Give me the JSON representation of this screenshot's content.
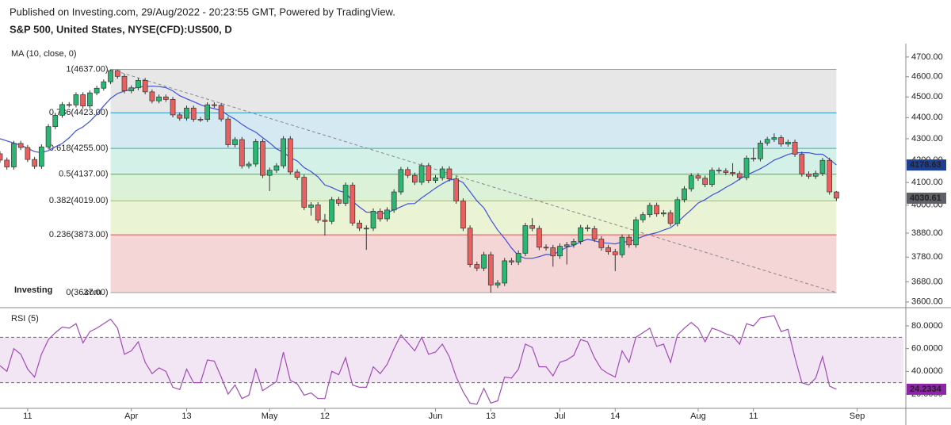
{
  "header": {
    "published": "Published on Investing.com, 29/Aug/2022 - 20:23:55 GMT, Powered by TradingView.",
    "instrument": "S&P 500, United States, NYSE(CFD):US500, D",
    "logo": "Investing",
    "logo_suffix": ".com"
  },
  "chart_data": [
    {
      "type": "candlestick",
      "indicator_label": "MA (10, close, 0)",
      "log": true,
      "ylim": [
        3584,
        4769
      ],
      "xlim": [
        0,
        130.7
      ],
      "up_color": "#2bb673",
      "down_color": "#e8605f",
      "ma_color": "#3f51d8",
      "yticks": [
        {
          "value": 4700,
          "label": "4700.00"
        },
        {
          "value": 4600,
          "label": "4600.00"
        },
        {
          "value": 4500,
          "label": "4500.00"
        },
        {
          "value": 4400,
          "label": "4400.00"
        },
        {
          "value": 4300,
          "label": "4300.00"
        },
        {
          "value": 4200,
          "label": "4200.00"
        },
        {
          "value": 4100,
          "label": "4100.00"
        },
        {
          "value": 4000,
          "label": "4000.00"
        },
        {
          "value": 3880,
          "label": "3880.00"
        },
        {
          "value": 3780,
          "label": "3780.00"
        },
        {
          "value": 3680,
          "label": "3680.00"
        },
        {
          "value": 3600,
          "label": "3600.00"
        }
      ],
      "xticks": [
        {
          "value": 4,
          "label": "11"
        },
        {
          "value": 19,
          "label": "Apr"
        },
        {
          "value": 27,
          "label": "13"
        },
        {
          "value": 39,
          "label": "May"
        },
        {
          "value": 47,
          "label": "12"
        },
        {
          "value": 63,
          "label": "Jun"
        },
        {
          "value": 71,
          "label": "13"
        },
        {
          "value": 81,
          "label": "Jul"
        },
        {
          "value": 89,
          "label": "14"
        },
        {
          "value": 101,
          "label": "Aug"
        },
        {
          "value": 109,
          "label": "11"
        },
        {
          "value": 124,
          "label": "Sep"
        }
      ],
      "fib": [
        {
          "value": 4637,
          "label": "1(4637.00)",
          "color": "#9e9e9e",
          "fill": "#e7e7e7"
        },
        {
          "value": 4423,
          "label": "0.786(4423.00)",
          "color": "#2196c8",
          "fill": "#d5e9f3"
        },
        {
          "value": 4255,
          "label": "0.618(4255.00)",
          "color": "#3cb4a0",
          "fill": "#d3f1e7"
        },
        {
          "value": 4137,
          "label": "0.5(4137.00)",
          "color": "#4caf50",
          "fill": "#dbf2d8"
        },
        {
          "value": 4019,
          "label": "0.382(4019.00)",
          "color": "#a8c04a",
          "fill": "#ebf3d5"
        },
        {
          "value": 3873,
          "label": "0.236(3873.00)",
          "color": "#e05050",
          "fill": "#f5d6d6"
        },
        {
          "value": 3637,
          "label": "0(3637.00)",
          "color": "#9e9e9e"
        }
      ],
      "candles": [
        {
          "o": 4230,
          "h": 4242,
          "l": 4189,
          "c": 4201
        },
        {
          "o": 4201,
          "h": 4213,
          "l": 4158,
          "c": 4170
        },
        {
          "o": 4170,
          "h": 4290,
          "l": 4158,
          "c": 4278
        },
        {
          "o": 4278,
          "h": 4290,
          "l": 4247,
          "c": 4259
        },
        {
          "o": 4259,
          "h": 4271,
          "l": 4192,
          "c": 4204
        },
        {
          "o": 4204,
          "h": 4216,
          "l": 4161,
          "c": 4173
        },
        {
          "o": 4173,
          "h": 4274,
          "l": 4161,
          "c": 4262
        },
        {
          "o": 4262,
          "h": 4369,
          "l": 4250,
          "c": 4357
        },
        {
          "o": 4357,
          "h": 4423,
          "l": 4345,
          "c": 4411
        },
        {
          "o": 4411,
          "h": 4475,
          "l": 4399,
          "c": 4463
        },
        {
          "o": 4463,
          "h": 4475,
          "l": 4449,
          "c": 4461
        },
        {
          "o": 4461,
          "h": 4523,
          "l": 4449,
          "c": 4511
        },
        {
          "o": 4511,
          "h": 4523,
          "l": 4444,
          "c": 4456
        },
        {
          "o": 4456,
          "h": 4532,
          "l": 4444,
          "c": 4520
        },
        {
          "o": 4520,
          "h": 4555,
          "l": 4508,
          "c": 4543
        },
        {
          "o": 4543,
          "h": 4587,
          "l": 4531,
          "c": 4575
        },
        {
          "o": 4575,
          "h": 4637,
          "l": 4563,
          "c": 4631
        },
        {
          "o": 4631,
          "h": 4636,
          "l": 4590,
          "c": 4602
        },
        {
          "o": 4602,
          "h": 4614,
          "l": 4518,
          "c": 4530
        },
        {
          "o": 4530,
          "h": 4557,
          "l": 4518,
          "c": 4545
        },
        {
          "o": 4545,
          "h": 4594,
          "l": 4533,
          "c": 4582
        },
        {
          "o": 4582,
          "h": 4594,
          "l": 4513,
          "c": 4525
        },
        {
          "o": 4525,
          "h": 4537,
          "l": 4469,
          "c": 4481
        },
        {
          "o": 4481,
          "h": 4512,
          "l": 4469,
          "c": 4500
        },
        {
          "o": 4500,
          "h": 4512,
          "l": 4476,
          "c": 4488
        },
        {
          "o": 4488,
          "h": 4500,
          "l": 4401,
          "c": 4413
        },
        {
          "o": 4413,
          "h": 4425,
          "l": 4385,
          "c": 4397
        },
        {
          "o": 4397,
          "h": 4458,
          "l": 4385,
          "c": 4446
        },
        {
          "o": 4446,
          "h": 4458,
          "l": 4380,
          "c": 4392
        },
        {
          "o": 4392,
          "h": 4403,
          "l": 4379,
          "c": 4391
        },
        {
          "o": 4391,
          "h": 4474,
          "l": 4379,
          "c": 4462
        },
        {
          "o": 4462,
          "h": 4474,
          "l": 4447,
          "c": 4459
        },
        {
          "o": 4459,
          "h": 4471,
          "l": 4381,
          "c": 4393
        },
        {
          "o": 4393,
          "h": 4405,
          "l": 4260,
          "c": 4272
        },
        {
          "o": 4272,
          "h": 4308,
          "l": 4260,
          "c": 4296
        },
        {
          "o": 4296,
          "h": 4308,
          "l": 4163,
          "c": 4175
        },
        {
          "o": 4175,
          "h": 4195,
          "l": 4163,
          "c": 4183
        },
        {
          "o": 4183,
          "h": 4299,
          "l": 4171,
          "c": 4287
        },
        {
          "o": 4287,
          "h": 4299,
          "l": 4120,
          "c": 4132
        },
        {
          "o": 4132,
          "h": 4167,
          "l": 4062,
          "c": 4155
        },
        {
          "o": 4155,
          "h": 4187,
          "l": 4143,
          "c": 4175
        },
        {
          "o": 4175,
          "h": 4312,
          "l": 4163,
          "c": 4300
        },
        {
          "o": 4300,
          "h": 4312,
          "l": 4135,
          "c": 4147
        },
        {
          "o": 4147,
          "h": 4159,
          "l": 4111,
          "c": 4123
        },
        {
          "o": 4123,
          "h": 4135,
          "l": 3979,
          "c": 3991
        },
        {
          "o": 3991,
          "h": 4013,
          "l": 3955,
          "c": 4001
        },
        {
          "o": 4001,
          "h": 4013,
          "l": 3923,
          "c": 3935
        },
        {
          "o": 3935,
          "h": 3962,
          "l": 3870,
          "c": 3930
        },
        {
          "o": 3930,
          "h": 4036,
          "l": 3918,
          "c": 4024
        },
        {
          "o": 4024,
          "h": 4036,
          "l": 3996,
          "c": 4008
        },
        {
          "o": 4008,
          "h": 4100,
          "l": 3996,
          "c": 4088
        },
        {
          "o": 4088,
          "h": 4100,
          "l": 3911,
          "c": 3923
        },
        {
          "o": 3923,
          "h": 3935,
          "l": 3889,
          "c": 3901
        },
        {
          "o": 3901,
          "h": 3913,
          "l": 3810,
          "c": 3901
        },
        {
          "o": 3901,
          "h": 3986,
          "l": 3889,
          "c": 3974
        },
        {
          "o": 3974,
          "h": 3986,
          "l": 3929,
          "c": 3941
        },
        {
          "o": 3941,
          "h": 3991,
          "l": 3929,
          "c": 3979
        },
        {
          "o": 3979,
          "h": 4070,
          "l": 3967,
          "c": 4058
        },
        {
          "o": 4058,
          "h": 4170,
          "l": 4046,
          "c": 4158
        },
        {
          "o": 4158,
          "h": 4170,
          "l": 4120,
          "c": 4132
        },
        {
          "o": 4132,
          "h": 4144,
          "l": 4089,
          "c": 4101
        },
        {
          "o": 4101,
          "h": 4188,
          "l": 4089,
          "c": 4176
        },
        {
          "o": 4176,
          "h": 4188,
          "l": 4097,
          "c": 4109
        },
        {
          "o": 4109,
          "h": 4133,
          "l": 4097,
          "c": 4121
        },
        {
          "o": 4121,
          "h": 4173,
          "l": 4109,
          "c": 4161
        },
        {
          "o": 4161,
          "h": 4173,
          "l": 4104,
          "c": 4116
        },
        {
          "o": 4116,
          "h": 4128,
          "l": 4006,
          "c": 4018
        },
        {
          "o": 4018,
          "h": 4030,
          "l": 3889,
          "c": 3901
        },
        {
          "o": 3901,
          "h": 3913,
          "l": 3738,
          "c": 3750
        },
        {
          "o": 3750,
          "h": 3762,
          "l": 3723,
          "c": 3735
        },
        {
          "o": 3735,
          "h": 3802,
          "l": 3723,
          "c": 3790
        },
        {
          "o": 3790,
          "h": 3802,
          "l": 3637,
          "c": 3667
        },
        {
          "o": 3667,
          "h": 3687,
          "l": 3655,
          "c": 3675
        },
        {
          "o": 3675,
          "h": 3777,
          "l": 3663,
          "c": 3765
        },
        {
          "o": 3765,
          "h": 3777,
          "l": 3748,
          "c": 3760
        },
        {
          "o": 3760,
          "h": 3808,
          "l": 3748,
          "c": 3796
        },
        {
          "o": 3796,
          "h": 3924,
          "l": 3784,
          "c": 3912
        },
        {
          "o": 3912,
          "h": 3944,
          "l": 3888,
          "c": 3900
        },
        {
          "o": 3900,
          "h": 3912,
          "l": 3809,
          "c": 3821
        },
        {
          "o": 3821,
          "h": 3833,
          "l": 3807,
          "c": 3819
        },
        {
          "o": 3819,
          "h": 3831,
          "l": 3741,
          "c": 3785
        },
        {
          "o": 3785,
          "h": 3837,
          "l": 3773,
          "c": 3825
        },
        {
          "o": 3825,
          "h": 3843,
          "l": 3750,
          "c": 3831
        },
        {
          "o": 3831,
          "h": 3857,
          "l": 3819,
          "c": 3845
        },
        {
          "o": 3845,
          "h": 3915,
          "l": 3833,
          "c": 3903
        },
        {
          "o": 3903,
          "h": 3915,
          "l": 3887,
          "c": 3899
        },
        {
          "o": 3899,
          "h": 3911,
          "l": 3843,
          "c": 3855
        },
        {
          "o": 3855,
          "h": 3867,
          "l": 3807,
          "c": 3819
        },
        {
          "o": 3819,
          "h": 3831,
          "l": 3790,
          "c": 3802
        },
        {
          "o": 3802,
          "h": 3814,
          "l": 3723,
          "c": 3790
        },
        {
          "o": 3790,
          "h": 3875,
          "l": 3778,
          "c": 3863
        },
        {
          "o": 3863,
          "h": 3875,
          "l": 3819,
          "c": 3831
        },
        {
          "o": 3831,
          "h": 3949,
          "l": 3819,
          "c": 3937
        },
        {
          "o": 3937,
          "h": 3971,
          "l": 3925,
          "c": 3959
        },
        {
          "o": 3959,
          "h": 4011,
          "l": 3947,
          "c": 3999
        },
        {
          "o": 3999,
          "h": 4011,
          "l": 3950,
          "c": 3962
        },
        {
          "o": 3962,
          "h": 3979,
          "l": 3950,
          "c": 3967
        },
        {
          "o": 3967,
          "h": 3979,
          "l": 3909,
          "c": 3921
        },
        {
          "o": 3921,
          "h": 4036,
          "l": 3909,
          "c": 4024
        },
        {
          "o": 4024,
          "h": 4084,
          "l": 4012,
          "c": 4072
        },
        {
          "o": 4072,
          "h": 4142,
          "l": 4060,
          "c": 4130
        },
        {
          "o": 4130,
          "h": 4142,
          "l": 4107,
          "c": 4119
        },
        {
          "o": 4119,
          "h": 4131,
          "l": 4079,
          "c": 4091
        },
        {
          "o": 4091,
          "h": 4167,
          "l": 4079,
          "c": 4155
        },
        {
          "o": 4155,
          "h": 4167,
          "l": 4140,
          "c": 4152
        },
        {
          "o": 4152,
          "h": 4164,
          "l": 4133,
          "c": 4145
        },
        {
          "o": 4145,
          "h": 4187,
          "l": 4128,
          "c": 4140
        },
        {
          "o": 4140,
          "h": 4152,
          "l": 4110,
          "c": 4122
        },
        {
          "o": 4122,
          "h": 4222,
          "l": 4110,
          "c": 4210
        },
        {
          "o": 4210,
          "h": 4257,
          "l": 4195,
          "c": 4207
        },
        {
          "o": 4207,
          "h": 4292,
          "l": 4195,
          "c": 4280
        },
        {
          "o": 4280,
          "h": 4309,
          "l": 4268,
          "c": 4297
        },
        {
          "o": 4297,
          "h": 4325,
          "l": 4285,
          "c": 4305
        },
        {
          "o": 4305,
          "h": 4317,
          "l": 4263,
          "c": 4275
        },
        {
          "o": 4275,
          "h": 4296,
          "l": 4263,
          "c": 4284
        },
        {
          "o": 4284,
          "h": 4296,
          "l": 4216,
          "c": 4228
        },
        {
          "o": 4228,
          "h": 4240,
          "l": 4126,
          "c": 4138
        },
        {
          "o": 4138,
          "h": 4150,
          "l": 4116,
          "c": 4128
        },
        {
          "o": 4128,
          "h": 4153,
          "l": 4116,
          "c": 4141
        },
        {
          "o": 4141,
          "h": 4212,
          "l": 4129,
          "c": 4200
        },
        {
          "o": 4200,
          "h": 4212,
          "l": 4046,
          "c": 4058
        },
        {
          "o": 4058,
          "h": 4062,
          "l": 4018,
          "c": 4030.61
        }
      ],
      "ma": [
        4300,
        4290,
        4280,
        4270,
        4255,
        4240,
        4235,
        4245,
        4262,
        4278,
        4304,
        4338,
        4356,
        4382,
        4416,
        4456,
        4493,
        4517,
        4529,
        4537,
        4550,
        4551,
        4553,
        4551,
        4546,
        4530,
        4506,
        4491,
        4477,
        4462,
        4450,
        4443,
        4434,
        4411,
        4392,
        4368,
        4347,
        4331,
        4305,
        4281,
        4253,
        4237,
        4212,
        4197,
        4167,
        4149,
        4125,
        4089,
        4078,
        4063,
        4055,
        4017,
        3992,
        3970,
        3969,
        3963,
        3967,
        3980,
        3993,
        4006,
        4007,
        4032,
        4053,
        4075,
        4094,
        4111,
        4115,
        4099,
        4059,
        4019,
        3988,
        3937,
        3893,
        3858,
        3818,
        3786,
        3775,
        3775,
        3782,
        3791,
        3790,
        3806,
        3821,
        3829,
        3844,
        3854,
        3848,
        3840,
        3838,
        3835,
        3843,
        3844,
        3854,
        3866,
        3875,
        3882,
        3893,
        3903,
        3925,
        3954,
        3980,
        4009,
        4024,
        4044,
        4059,
        4078,
        4095,
        4115,
        4134,
        4147,
        4162,
        4180,
        4201,
        4213,
        4227,
        4235,
        4235,
        4235,
        4228,
        4228,
        4205,
        4178.63
      ]
    },
    {
      "type": "line",
      "title": "RSI (5)",
      "color": "#a04cb4",
      "ylim": [
        7.4,
        92.6
      ],
      "bands": [
        70,
        30
      ],
      "band_fill": "#f2e6f5",
      "yticks": [
        {
          "value": 80,
          "label": "80.0000"
        },
        {
          "value": 60,
          "label": "60.0000"
        },
        {
          "value": 40,
          "label": "40.0000"
        },
        {
          "value": 20,
          "label": "20.0000"
        }
      ],
      "values": [
        45,
        40,
        60,
        55,
        42,
        35,
        55,
        68,
        74,
        79,
        78,
        82,
        65,
        75,
        78,
        82,
        86,
        78,
        55,
        58,
        66,
        48,
        38,
        43,
        40,
        26,
        24,
        42,
        30,
        30,
        50,
        49,
        35,
        20,
        28,
        16,
        19,
        42,
        23,
        27,
        31,
        57,
        32,
        29,
        19,
        21,
        16,
        16,
        40,
        37,
        52,
        28,
        26,
        26,
        44,
        38,
        46,
        60,
        72,
        65,
        58,
        70,
        55,
        57,
        64,
        53,
        35,
        22,
        12,
        11,
        25,
        12,
        14,
        35,
        34,
        42,
        64,
        61,
        44,
        44,
        36,
        48,
        50,
        54,
        68,
        66,
        52,
        42,
        38,
        35,
        58,
        48,
        70,
        74,
        78,
        62,
        64,
        48,
        72,
        78,
        83,
        78,
        66,
        78,
        76,
        73,
        71,
        64,
        82,
        80,
        87,
        88,
        89,
        75,
        77,
        52,
        30,
        28,
        34,
        53,
        27,
        24.2334
      ]
    }
  ]
}
